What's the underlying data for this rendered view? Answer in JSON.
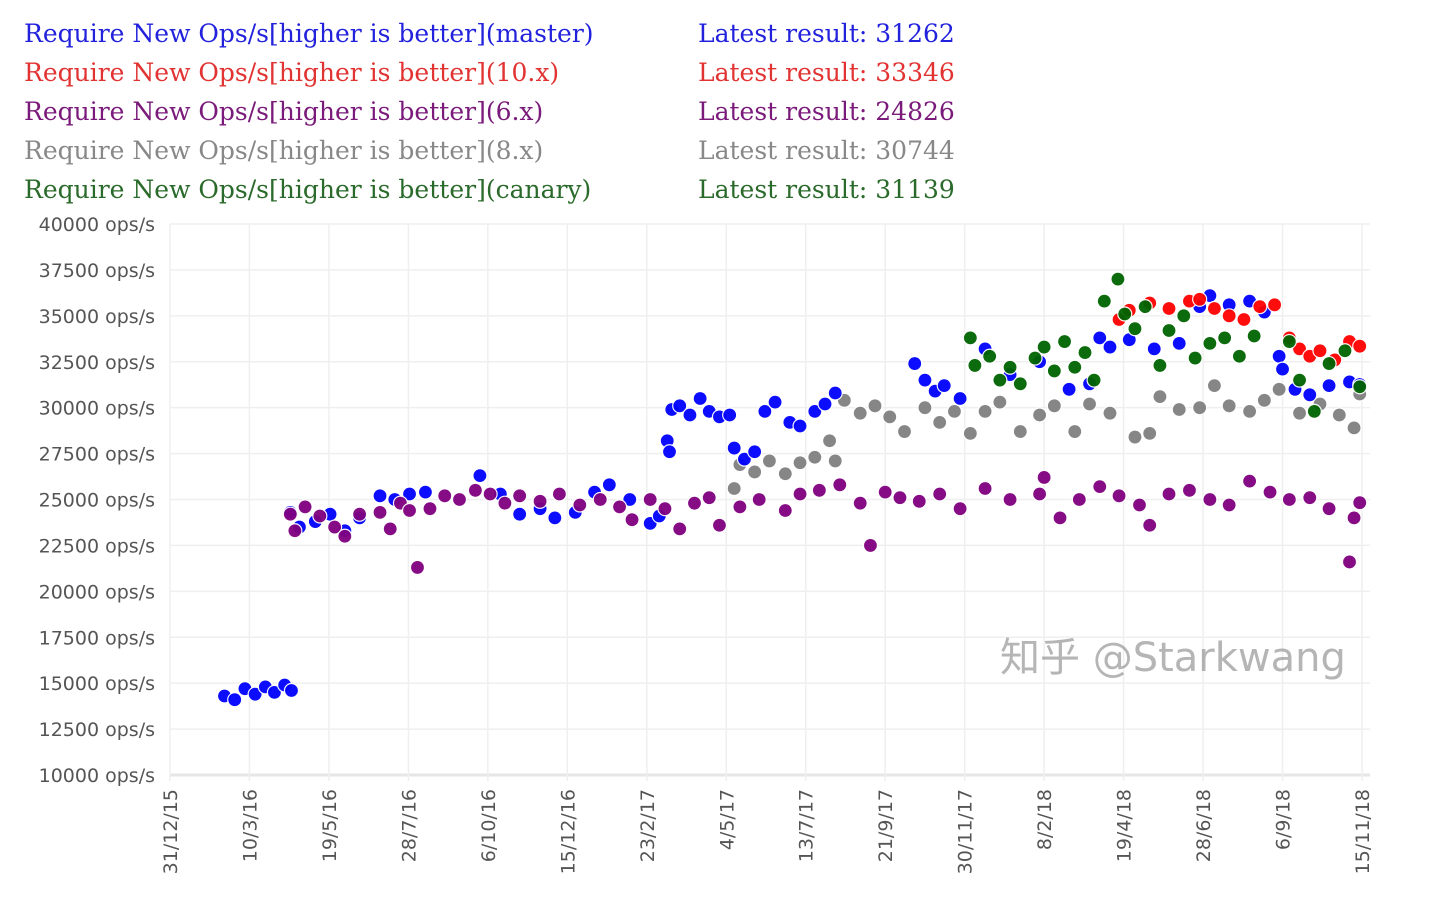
{
  "chart_data": {
    "type": "scatter",
    "title": "",
    "xlabel": "",
    "ylabel": "",
    "x_unit": "days since 31/12/15",
    "xlim": [
      0,
      1050
    ],
    "ylim": [
      10000,
      40000
    ],
    "grid": true,
    "legend_position": "top-left",
    "yticks": [
      10000,
      12500,
      15000,
      17500,
      20000,
      22500,
      25000,
      27500,
      30000,
      32500,
      35000,
      37500,
      40000
    ],
    "ytick_suffix": " ops/s",
    "xticks": [
      {
        "day": 0,
        "label": "31/12/15"
      },
      {
        "day": 70,
        "label": "10/3/16"
      },
      {
        "day": 140,
        "label": "19/5/16"
      },
      {
        "day": 210,
        "label": "28/7/16"
      },
      {
        "day": 280,
        "label": "6/10/16"
      },
      {
        "day": 350,
        "label": "15/12/16"
      },
      {
        "day": 420,
        "label": "23/2/17"
      },
      {
        "day": 490,
        "label": "4/5/17"
      },
      {
        "day": 560,
        "label": "13/7/17"
      },
      {
        "day": 630,
        "label": "21/9/17"
      },
      {
        "day": 700,
        "label": "30/11/17"
      },
      {
        "day": 770,
        "label": "8/2/18"
      },
      {
        "day": 840,
        "label": "19/4/18"
      },
      {
        "day": 910,
        "label": "28/6/18"
      },
      {
        "day": 980,
        "label": "6/9/18"
      },
      {
        "day": 1050,
        "label": "15/11/18"
      }
    ],
    "series": [
      {
        "name": "Require New Ops/s[higher is better](master)",
        "latest": "Latest result: 31262",
        "color": "#0000ff",
        "points": [
          [
            48,
            14300
          ],
          [
            57,
            14100
          ],
          [
            66,
            14700
          ],
          [
            75,
            14400
          ],
          [
            84,
            14800
          ],
          [
            92,
            14500
          ],
          [
            101,
            14900
          ],
          [
            107,
            14600
          ],
          [
            106,
            24300
          ],
          [
            114,
            23500
          ],
          [
            128,
            23800
          ],
          [
            141,
            24200
          ],
          [
            154,
            23300
          ],
          [
            167,
            24000
          ],
          [
            185,
            25200
          ],
          [
            198,
            25000
          ],
          [
            211,
            25300
          ],
          [
            225,
            25400
          ],
          [
            273,
            26300
          ],
          [
            291,
            25300
          ],
          [
            308,
            24200
          ],
          [
            326,
            24500
          ],
          [
            339,
            24000
          ],
          [
            357,
            24300
          ],
          [
            374,
            25400
          ],
          [
            387,
            25800
          ],
          [
            405,
            25000
          ],
          [
            423,
            23700
          ],
          [
            431,
            24100
          ],
          [
            438,
            28200
          ],
          [
            440,
            27600
          ],
          [
            442,
            29900
          ],
          [
            449,
            30100
          ],
          [
            458,
            29600
          ],
          [
            467,
            30500
          ],
          [
            475,
            29800
          ],
          [
            484,
            29500
          ],
          [
            493,
            29600
          ],
          [
            497,
            27800
          ],
          [
            506,
            27200
          ],
          [
            515,
            27600
          ],
          [
            524,
            29800
          ],
          [
            533,
            30300
          ],
          [
            546,
            29200
          ],
          [
            555,
            29000
          ],
          [
            568,
            29800
          ],
          [
            577,
            30200
          ],
          [
            586,
            30800
          ],
          [
            656,
            32400
          ],
          [
            665,
            31500
          ],
          [
            674,
            30900
          ],
          [
            682,
            31200
          ],
          [
            696,
            30500
          ],
          [
            718,
            33200
          ],
          [
            740,
            31800
          ],
          [
            766,
            32500
          ],
          [
            792,
            31000
          ],
          [
            810,
            31300
          ],
          [
            819,
            33800
          ],
          [
            828,
            33300
          ],
          [
            845,
            33700
          ],
          [
            867,
            33200
          ],
          [
            889,
            33500
          ],
          [
            907,
            35500
          ],
          [
            916,
            36100
          ],
          [
            933,
            35600
          ],
          [
            951,
            35800
          ],
          [
            964,
            35200
          ],
          [
            977,
            32800
          ],
          [
            980,
            32100
          ],
          [
            991,
            31000
          ],
          [
            1004,
            30700
          ],
          [
            1021,
            31200
          ],
          [
            1039,
            31400
          ],
          [
            1048,
            31262
          ]
        ]
      },
      {
        "name": "Require New Ops/s[higher is better](10.x)",
        "latest": "Latest result: 33346",
        "color": "#ff0000",
        "points": [
          [
            836,
            34800
          ],
          [
            845,
            35300
          ],
          [
            863,
            35700
          ],
          [
            880,
            35400
          ],
          [
            898,
            35800
          ],
          [
            907,
            35900
          ],
          [
            920,
            35400
          ],
          [
            933,
            35000
          ],
          [
            946,
            34800
          ],
          [
            960,
            35500
          ],
          [
            973,
            35600
          ],
          [
            986,
            33800
          ],
          [
            995,
            33200
          ],
          [
            1004,
            32800
          ],
          [
            1013,
            33100
          ],
          [
            1026,
            32600
          ],
          [
            1039,
            33600
          ],
          [
            1048,
            33346
          ]
        ]
      },
      {
        "name": "Require New Ops/s[higher is better](6.x)",
        "latest": "Latest result: 24826",
        "color": "#800080",
        "points": [
          [
            106,
            24200
          ],
          [
            110,
            23300
          ],
          [
            119,
            24600
          ],
          [
            132,
            24100
          ],
          [
            145,
            23500
          ],
          [
            154,
            23000
          ],
          [
            167,
            24200
          ],
          [
            185,
            24300
          ],
          [
            194,
            23400
          ],
          [
            203,
            24800
          ],
          [
            211,
            24400
          ],
          [
            218,
            21300
          ],
          [
            229,
            24500
          ],
          [
            242,
            25200
          ],
          [
            255,
            25000
          ],
          [
            269,
            25500
          ],
          [
            282,
            25300
          ],
          [
            295,
            24800
          ],
          [
            308,
            25200
          ],
          [
            326,
            24900
          ],
          [
            343,
            25300
          ],
          [
            361,
            24700
          ],
          [
            379,
            25000
          ],
          [
            396,
            24600
          ],
          [
            407,
            23900
          ],
          [
            423,
            25000
          ],
          [
            436,
            24500
          ],
          [
            449,
            23400
          ],
          [
            462,
            24800
          ],
          [
            475,
            25100
          ],
          [
            484,
            23600
          ],
          [
            502,
            24600
          ],
          [
            519,
            25000
          ],
          [
            542,
            24400
          ],
          [
            555,
            25300
          ],
          [
            572,
            25500
          ],
          [
            590,
            25800
          ],
          [
            608,
            24800
          ],
          [
            617,
            22500
          ],
          [
            630,
            25400
          ],
          [
            643,
            25100
          ],
          [
            660,
            24900
          ],
          [
            678,
            25300
          ],
          [
            696,
            24500
          ],
          [
            718,
            25600
          ],
          [
            740,
            25000
          ],
          [
            766,
            25300
          ],
          [
            770,
            26200
          ],
          [
            784,
            24000
          ],
          [
            801,
            25000
          ],
          [
            819,
            25700
          ],
          [
            836,
            25200
          ],
          [
            854,
            24700
          ],
          [
            863,
            23600
          ],
          [
            880,
            25300
          ],
          [
            898,
            25500
          ],
          [
            916,
            25000
          ],
          [
            933,
            24700
          ],
          [
            951,
            26000
          ],
          [
            969,
            25400
          ],
          [
            986,
            25000
          ],
          [
            1004,
            25100
          ],
          [
            1021,
            24500
          ],
          [
            1039,
            21600
          ],
          [
            1043,
            24000
          ],
          [
            1048,
            24826
          ]
        ]
      },
      {
        "name": "Require New Ops/s[higher is better](8.x)",
        "latest": "Latest result: 30744",
        "color": "#808080",
        "points": [
          [
            497,
            25600
          ],
          [
            502,
            26900
          ],
          [
            515,
            26500
          ],
          [
            528,
            27100
          ],
          [
            542,
            26400
          ],
          [
            555,
            27000
          ],
          [
            568,
            27300
          ],
          [
            581,
            28200
          ],
          [
            586,
            27100
          ],
          [
            594,
            30400
          ],
          [
            608,
            29700
          ],
          [
            621,
            30100
          ],
          [
            634,
            29500
          ],
          [
            647,
            28700
          ],
          [
            665,
            30000
          ],
          [
            678,
            29200
          ],
          [
            691,
            29800
          ],
          [
            705,
            28600
          ],
          [
            718,
            29800
          ],
          [
            731,
            30300
          ],
          [
            749,
            28700
          ],
          [
            766,
            29600
          ],
          [
            779,
            30100
          ],
          [
            797,
            28700
          ],
          [
            810,
            30200
          ],
          [
            828,
            29700
          ],
          [
            850,
            28400
          ],
          [
            863,
            28600
          ],
          [
            872,
            30600
          ],
          [
            889,
            29900
          ],
          [
            907,
            30000
          ],
          [
            920,
            31200
          ],
          [
            933,
            30100
          ],
          [
            951,
            29800
          ],
          [
            964,
            30400
          ],
          [
            977,
            31000
          ],
          [
            995,
            29700
          ],
          [
            1013,
            30200
          ],
          [
            1030,
            29600
          ],
          [
            1043,
            28900
          ],
          [
            1048,
            30744
          ]
        ]
      },
      {
        "name": "Require New Ops/s[higher is better](canary)",
        "latest": "Latest result: 31139",
        "color": "#006400",
        "points": [
          [
            705,
            33800
          ],
          [
            709,
            32300
          ],
          [
            722,
            32800
          ],
          [
            731,
            31500
          ],
          [
            740,
            32200
          ],
          [
            749,
            31300
          ],
          [
            762,
            32700
          ],
          [
            770,
            33300
          ],
          [
            779,
            32000
          ],
          [
            788,
            33600
          ],
          [
            797,
            32200
          ],
          [
            806,
            33000
          ],
          [
            814,
            31500
          ],
          [
            823,
            35800
          ],
          [
            835,
            37000
          ],
          [
            841,
            35100
          ],
          [
            850,
            34300
          ],
          [
            859,
            35500
          ],
          [
            872,
            32300
          ],
          [
            880,
            34200
          ],
          [
            893,
            35000
          ],
          [
            903,
            32700
          ],
          [
            916,
            33500
          ],
          [
            929,
            33800
          ],
          [
            942,
            32800
          ],
          [
            955,
            33900
          ],
          [
            986,
            33600
          ],
          [
            995,
            31500
          ],
          [
            1008,
            29800
          ],
          [
            1021,
            32400
          ],
          [
            1035,
            33100
          ],
          [
            1048,
            31139
          ]
        ]
      }
    ]
  },
  "watermark": "知乎 @Starkwang"
}
